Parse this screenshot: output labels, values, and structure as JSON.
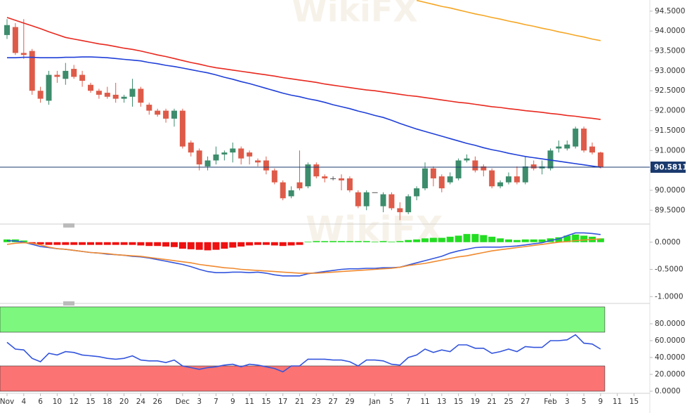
{
  "watermark": "WikiFX",
  "chart_data": [
    {
      "type": "candlestick",
      "categories": [
        "Nov",
        null,
        "4",
        null,
        "6",
        null,
        "10",
        null,
        "12",
        null,
        "15",
        null,
        "18",
        null,
        "20",
        null,
        "24",
        null,
        "26",
        null,
        null,
        "Dec",
        null,
        "3",
        null,
        "7",
        null,
        "9",
        null,
        "11",
        null,
        "15",
        null,
        "17",
        null,
        "21",
        null,
        "23",
        null,
        "27",
        null,
        "29",
        null,
        null,
        "Jan",
        null,
        "5",
        null,
        "7",
        null,
        "11",
        null,
        "13",
        null,
        "15",
        null,
        "19",
        null,
        "21",
        null,
        "25",
        null,
        "27",
        null,
        null,
        "Feb",
        null,
        "3",
        null,
        "5",
        null,
        "9",
        null,
        "11",
        null,
        "15",
        null
      ],
      "open": [
        93.9,
        94.1,
        93.45,
        93.5,
        92.5,
        92.25,
        92.9,
        92.8,
        93.05,
        92.9,
        92.65,
        92.5,
        92.45,
        92.4,
        92.3,
        92.35,
        92.55,
        92.15,
        92.0,
        92.0,
        91.8,
        92.0,
        91.2,
        91.0,
        90.6,
        90.75,
        90.9,
        90.95,
        91.05,
        90.95,
        90.75,
        90.75,
        90.5,
        90.2,
        89.85,
        90.2,
        90.1,
        90.65,
        90.35,
        90.3,
        90.3,
        90.3,
        89.95,
        89.6,
        89.95,
        89.6,
        89.9,
        89.55,
        89.45,
        89.85,
        90.05,
        90.55,
        90.35,
        90.2,
        90.3,
        90.75,
        90.75,
        90.6,
        90.5,
        90.1,
        90.2,
        90.35,
        90.2,
        90.65,
        90.55,
        90.55,
        91.05,
        91.05,
        91.1,
        91.55,
        91.1,
        90.95,
        null,
        null,
        null,
        null,
        null
      ],
      "high": [
        94.3,
        94.2,
        94.3,
        93.55,
        92.6,
        93.0,
        93.0,
        93.2,
        93.15,
        93.0,
        92.7,
        92.55,
        92.6,
        92.7,
        92.4,
        92.8,
        92.6,
        92.2,
        92.05,
        92.05,
        92.05,
        92.05,
        91.25,
        91.05,
        90.85,
        91.1,
        91.0,
        91.2,
        91.1,
        91.0,
        90.8,
        90.85,
        90.55,
        90.25,
        90.1,
        91.0,
        90.7,
        90.7,
        90.4,
        90.35,
        90.4,
        90.35,
        90.0,
        90.0,
        89.95,
        89.95,
        89.95,
        89.7,
        89.9,
        90.1,
        90.7,
        90.6,
        90.4,
        90.45,
        90.8,
        90.9,
        90.85,
        90.65,
        90.55,
        90.25,
        90.45,
        90.6,
        90.85,
        90.75,
        90.75,
        91.05,
        91.25,
        91.25,
        91.6,
        91.6,
        91.2,
        90.97,
        null,
        null,
        null,
        null,
        null
      ],
      "low": [
        93.8,
        93.4,
        93.3,
        92.4,
        92.2,
        92.15,
        92.7,
        92.65,
        92.8,
        92.6,
        92.45,
        92.3,
        92.3,
        92.2,
        92.2,
        92.1,
        92.1,
        91.9,
        91.85,
        91.7,
        91.6,
        91.05,
        90.85,
        90.5,
        90.5,
        90.65,
        90.75,
        90.7,
        90.65,
        90.65,
        90.6,
        90.4,
        90.15,
        89.75,
        89.8,
        90.0,
        90.05,
        90.3,
        90.2,
        90.25,
        90.0,
        89.95,
        89.55,
        89.5,
        89.95,
        89.45,
        89.5,
        89.25,
        89.4,
        89.75,
        90.0,
        90.1,
        89.95,
        90.15,
        90.25,
        90.7,
        90.45,
        90.35,
        90.05,
        90.05,
        90.15,
        90.15,
        90.15,
        90.5,
        90.4,
        90.5,
        90.95,
        91.0,
        91.05,
        90.95,
        90.9,
        90.55,
        null,
        null,
        null,
        null,
        null
      ],
      "close": [
        94.15,
        93.45,
        93.4,
        92.5,
        92.3,
        92.9,
        92.85,
        93.0,
        92.85,
        92.75,
        92.5,
        92.4,
        92.35,
        92.3,
        92.35,
        92.55,
        92.2,
        92.0,
        91.9,
        91.8,
        92.0,
        91.1,
        90.95,
        90.65,
        90.75,
        90.9,
        90.95,
        91.05,
        90.8,
        90.85,
        90.7,
        90.5,
        90.2,
        89.8,
        90.0,
        90.05,
        90.65,
        90.35,
        90.3,
        90.3,
        90.25,
        90.0,
        89.6,
        89.95,
        89.95,
        89.9,
        89.55,
        89.45,
        89.85,
        90.05,
        90.55,
        90.3,
        90.05,
        90.35,
        90.75,
        90.8,
        90.5,
        90.5,
        90.1,
        90.2,
        90.35,
        90.2,
        90.6,
        90.55,
        90.6,
        91.0,
        91.1,
        91.15,
        91.55,
        91.0,
        90.95,
        90.58,
        null,
        null,
        null,
        null,
        null
      ],
      "up_color": "#3d8c6c",
      "down_color": "#de5b49",
      "doji_color": "#555555",
      "series": [
        {
          "color": "#e8281e",
          "values": [
            94.34,
            94.27,
            94.2,
            94.13,
            94.06,
            93.98,
            93.91,
            93.84,
            93.8,
            93.76,
            93.72,
            93.68,
            93.65,
            93.61,
            93.57,
            93.54,
            93.5,
            93.45,
            93.4,
            93.36,
            93.31,
            93.26,
            93.21,
            93.17,
            93.12,
            93.08,
            93.05,
            93.02,
            92.99,
            92.96,
            92.93,
            92.9,
            92.87,
            92.83,
            92.8,
            92.77,
            92.74,
            92.71,
            92.67,
            92.64,
            92.61,
            92.58,
            92.55,
            92.52,
            92.5,
            92.47,
            92.44,
            92.41,
            92.38,
            92.36,
            92.33,
            92.3,
            92.27,
            92.24,
            92.21,
            92.19,
            92.16,
            92.13,
            92.1,
            92.08,
            92.05,
            92.03,
            92.0,
            91.98,
            91.96,
            91.93,
            91.91,
            91.88,
            91.86,
            91.83,
            91.81,
            91.78,
            null,
            null,
            null,
            null,
            null
          ]
        },
        {
          "color": "#1f3fd8",
          "values": [
            93.33,
            93.33,
            93.34,
            93.34,
            93.33,
            93.33,
            93.33,
            93.34,
            93.34,
            93.35,
            93.35,
            93.34,
            93.33,
            93.31,
            93.29,
            93.27,
            93.25,
            93.21,
            93.18,
            93.14,
            93.11,
            93.07,
            93.03,
            92.99,
            92.95,
            92.9,
            92.84,
            92.79,
            92.73,
            92.68,
            92.62,
            92.56,
            92.5,
            92.44,
            92.39,
            92.35,
            92.3,
            92.26,
            92.21,
            92.15,
            92.1,
            92.05,
            91.99,
            91.94,
            91.88,
            91.83,
            91.76,
            91.68,
            91.61,
            91.54,
            91.48,
            91.42,
            91.36,
            91.3,
            91.24,
            91.18,
            91.13,
            91.07,
            91.02,
            90.98,
            90.93,
            90.89,
            90.85,
            90.82,
            90.79,
            90.76,
            90.73,
            90.7,
            90.67,
            90.64,
            90.61,
            90.58,
            null,
            null,
            null,
            null,
            null
          ]
        },
        {
          "color": "#f5a623",
          "values": [
            null,
            null,
            null,
            null,
            null,
            null,
            null,
            null,
            null,
            null,
            null,
            null,
            null,
            null,
            null,
            null,
            null,
            null,
            null,
            null,
            null,
            null,
            null,
            null,
            null,
            null,
            null,
            null,
            null,
            null,
            null,
            null,
            null,
            null,
            null,
            null,
            null,
            null,
            null,
            null,
            null,
            null,
            null,
            null,
            null,
            null,
            null,
            null,
            null,
            94.77,
            94.72,
            94.67,
            94.62,
            94.58,
            94.53,
            94.48,
            94.43,
            94.39,
            94.34,
            94.3,
            94.25,
            94.21,
            94.16,
            94.12,
            94.07,
            94.03,
            93.98,
            93.94,
            93.89,
            93.85,
            93.8,
            93.76,
            null,
            null,
            null,
            null,
            null
          ]
        }
      ],
      "last_price": 90.5811,
      "last_price_color": "#1a3a6e",
      "ylim": [
        89.17,
        94.78
      ],
      "yticks": [
        {
          "value": 89.5,
          "label": "89.5000"
        },
        {
          "value": 90.0,
          "label": "90.0000"
        },
        {
          "value": 90.5,
          "label": "90.5000"
        },
        {
          "value": 91.0,
          "label": "91.0000"
        },
        {
          "value": 91.5,
          "label": "91.5000"
        },
        {
          "value": 92.0,
          "label": "92.0000"
        },
        {
          "value": 92.5,
          "label": "92.5000"
        },
        {
          "value": 93.0,
          "label": "93.0000"
        },
        {
          "value": 93.5,
          "label": "93.5000"
        },
        {
          "value": 94.0,
          "label": "94.0000"
        },
        {
          "value": 94.5,
          "label": "94.5000"
        }
      ]
    },
    {
      "type": "macd",
      "histogram": {
        "up_color": "#22dd22",
        "down_color": "#ee1111",
        "values": [
          0.05,
          0.05,
          0.03,
          -0.03,
          -0.04,
          -0.05,
          -0.05,
          -0.05,
          -0.05,
          -0.05,
          -0.05,
          -0.05,
          -0.05,
          -0.05,
          -0.05,
          -0.05,
          -0.06,
          -0.07,
          -0.07,
          -0.08,
          -0.09,
          -0.12,
          -0.13,
          -0.14,
          -0.15,
          -0.14,
          -0.12,
          -0.1,
          -0.08,
          -0.06,
          -0.05,
          -0.05,
          -0.06,
          -0.07,
          -0.06,
          -0.05,
          0.01,
          0.02,
          0.02,
          0.02,
          0.02,
          0.02,
          0.02,
          0.02,
          0.01,
          0.02,
          0.01,
          0.02,
          0.04,
          0.05,
          0.07,
          0.08,
          0.08,
          0.1,
          0.12,
          0.15,
          0.15,
          0.13,
          0.1,
          0.07,
          0.05,
          0.04,
          0.05,
          0.05,
          0.05,
          0.07,
          0.09,
          0.12,
          0.14,
          0.12,
          0.1,
          0.07,
          null,
          null,
          null,
          null,
          null
        ]
      },
      "series": [
        {
          "color": "#3355dd",
          "values": [
            0.03,
            0.02,
            0.0,
            -0.04,
            -0.08,
            -0.1,
            -0.12,
            -0.13,
            -0.15,
            -0.17,
            -0.19,
            -0.2,
            -0.22,
            -0.23,
            -0.24,
            -0.26,
            -0.27,
            -0.29,
            -0.32,
            -0.35,
            -0.38,
            -0.41,
            -0.45,
            -0.5,
            -0.54,
            -0.56,
            -0.56,
            -0.55,
            -0.55,
            -0.56,
            -0.55,
            -0.57,
            -0.6,
            -0.62,
            -0.62,
            -0.62,
            -0.58,
            -0.56,
            -0.54,
            -0.52,
            -0.5,
            -0.49,
            -0.49,
            -0.48,
            -0.48,
            -0.47,
            -0.47,
            -0.46,
            -0.42,
            -0.38,
            -0.34,
            -0.3,
            -0.26,
            -0.2,
            -0.16,
            -0.13,
            -0.1,
            -0.09,
            -0.09,
            -0.09,
            -0.08,
            -0.07,
            -0.05,
            -0.03,
            -0.01,
            0.03,
            0.06,
            0.12,
            0.17,
            0.17,
            0.16,
            0.14,
            null,
            null,
            null,
            null,
            null
          ]
        },
        {
          "color": "#f08a30",
          "values": [
            -0.04,
            -0.02,
            -0.01,
            -0.02,
            -0.05,
            -0.09,
            -0.12,
            -0.13,
            -0.15,
            -0.17,
            -0.19,
            -0.2,
            -0.21,
            -0.23,
            -0.24,
            -0.25,
            -0.26,
            -0.28,
            -0.3,
            -0.32,
            -0.34,
            -0.36,
            -0.38,
            -0.41,
            -0.43,
            -0.45,
            -0.47,
            -0.48,
            -0.5,
            -0.51,
            -0.52,
            -0.53,
            -0.54,
            -0.55,
            -0.56,
            -0.57,
            -0.57,
            -0.57,
            -0.56,
            -0.55,
            -0.54,
            -0.53,
            -0.52,
            -0.51,
            -0.5,
            -0.49,
            -0.48,
            -0.46,
            -0.43,
            -0.41,
            -0.39,
            -0.36,
            -0.33,
            -0.3,
            -0.27,
            -0.25,
            -0.22,
            -0.19,
            -0.16,
            -0.14,
            -0.12,
            -0.1,
            -0.08,
            -0.06,
            -0.04,
            -0.02,
            0.0,
            0.01,
            0.03,
            0.04,
            0.05,
            0.06,
            null,
            null,
            null,
            null,
            null
          ]
        }
      ],
      "ylim": [
        -1.1,
        0.32
      ],
      "yticks": [
        {
          "value": -1.0,
          "label": "-1.0000"
        },
        {
          "value": -0.5,
          "label": "-0.5000"
        },
        {
          "value": 0.0,
          "label": "0.0000"
        }
      ]
    },
    {
      "type": "line",
      "bands": [
        {
          "from": 70,
          "to": 100,
          "color": "#7df77d"
        },
        {
          "from": 0,
          "to": 30,
          "color": "#fb7373"
        }
      ],
      "series": [
        {
          "color": "#3355dd",
          "values": [
            58,
            50,
            49,
            39,
            35,
            45,
            43,
            47,
            46,
            43,
            42,
            41,
            39,
            38,
            39,
            42,
            37,
            36,
            36,
            34,
            37,
            30,
            28,
            26,
            28,
            29,
            31,
            32,
            29,
            32,
            31,
            29,
            27,
            23,
            30,
            30,
            38,
            38,
            38,
            37,
            37,
            35,
            30,
            37,
            37,
            36,
            32,
            31,
            40,
            43,
            50,
            46,
            49,
            47,
            55,
            55,
            51,
            51,
            45,
            47,
            50,
            47,
            53,
            52,
            52,
            60,
            60,
            61,
            67,
            57,
            56,
            50,
            null,
            null,
            null,
            null,
            null
          ]
        }
      ],
      "ylim": [
        -2.5,
        100.8
      ],
      "yticks": [
        {
          "value": 0,
          "label": "0.0000"
        },
        {
          "value": 20,
          "label": "20.0000"
        },
        {
          "value": 40,
          "label": "40.0000"
        },
        {
          "value": 60,
          "label": "60.0000"
        },
        {
          "value": 80,
          "label": "80.0000"
        }
      ]
    }
  ]
}
